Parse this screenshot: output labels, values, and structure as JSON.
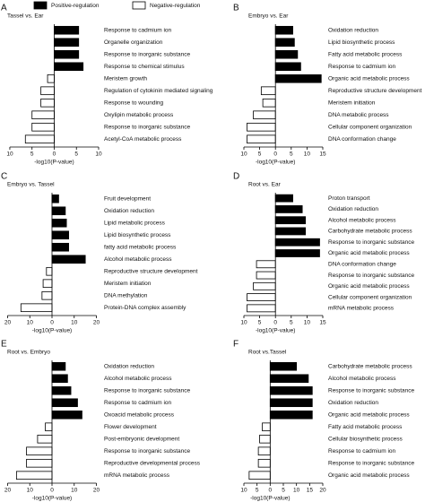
{
  "legend": [
    {
      "name": "Positive-regulation",
      "color": "#000000"
    },
    {
      "name": "Negative-regulation",
      "color": "#ffffff"
    }
  ],
  "chart_data": [
    {
      "type": "bar",
      "label": "A",
      "title": "Tassel vs. Ear",
      "x_label": "-log10(P-value)",
      "categories": [
        "Response to cadmium ion",
        "Organelle organization",
        "Response to inorganic substance",
        "Response to chemical stimulus",
        "Meristem growth",
        "Regulation of cytokinin mediated signaling",
        "Response to wounding",
        "Oxylipin metabolic process",
        "Response to inorganic substance",
        "Acetyl-CoA metabolic process"
      ],
      "values": [
        5.5,
        5.5,
        5.5,
        6.5,
        -1.5,
        -3,
        -3,
        -5,
        -5,
        -6.5
      ],
      "xlim": [
        -11,
        10
      ],
      "xticks": [
        {
          "value": -10,
          "label": "10"
        },
        {
          "value": -5,
          "label": "5"
        },
        0,
        5,
        10
      ]
    },
    {
      "type": "bar",
      "label": "B",
      "title": "Embryo vs. Ear",
      "x_label": "-log10(P-value)",
      "categories": [
        "Oxidation reduction",
        "Lipid biosynthetic process",
        "Fatty acid metabolic process",
        "Response to cadmium ion",
        "Organic acid metabolic process",
        "Reproductive structure development",
        "Meristem initiation",
        "DNA metabolic process",
        "Cellular component organization",
        "DNA conformation change"
      ],
      "values": [
        5.5,
        6,
        7,
        8,
        14.5,
        -4.5,
        -4,
        -7,
        -9,
        -9
      ],
      "xlim": [
        -10,
        15
      ],
      "xticks": [
        {
          "value": -10,
          "label": "10"
        },
        {
          "value": -5,
          "label": "5"
        },
        0,
        5,
        10,
        15
      ]
    },
    {
      "type": "bar",
      "label": "C",
      "title": "Embryo vs. Tassel",
      "x_label": "-log10(P-value)",
      "categories": [
        "Fruit development",
        "Oxidation reduction",
        "Lipid metabolic process",
        "Lipid biosynthetic process",
        "fatty acid metabolic process",
        "Alcohol metabolic process",
        "Reproductive structure development",
        "Meristem initiation",
        "DNA methylation",
        "Protein-DNA complex assembly"
      ],
      "values": [
        3,
        6,
        6.5,
        7.5,
        7.5,
        15,
        -2.5,
        -4,
        -4.5,
        -14
      ],
      "xlim": [
        -21,
        21
      ],
      "xticks": [
        {
          "value": -20,
          "label": "20"
        },
        {
          "value": -10,
          "label": "10"
        },
        0,
        10,
        20
      ]
    },
    {
      "type": "bar",
      "label": "D",
      "title": "Root vs. Ear",
      "x_label": "-log10(P-value)",
      "categories": [
        "Proton transport",
        "Oxidation reduction",
        "Alcohol metabolic process",
        "Carbohydrate metabolic process",
        "Response to inorganic substance",
        "Organic acid metabolic process",
        "DNA conformation change",
        "Response to inorganic substance",
        "Organic acid metabolic process",
        "Cellular component organization",
        "mRNA metabolic process"
      ],
      "values": [
        5.5,
        8.5,
        9.5,
        9.5,
        14,
        14,
        -6,
        -6,
        -7,
        -9,
        -9
      ],
      "xlim": [
        -10,
        15
      ],
      "xticks": [
        {
          "value": -10,
          "label": "10"
        },
        {
          "value": -5,
          "label": "5"
        },
        0,
        5,
        10,
        15
      ]
    },
    {
      "type": "bar",
      "label": "E",
      "title": "Root vs. Embryo",
      "x_label": "-log10(P-value)",
      "categories": [
        "Oxidation reduction",
        "Alcohol metabolic process",
        "Response to inorganic substance",
        "Response to cadmium ion",
        "Oxoacid metabolic process",
        "Flower development",
        "Post-embryonic development",
        "Response to inorganic substance",
        "Reproductive developmental process",
        "mRNA metabolic process"
      ],
      "values": [
        6,
        7,
        8.5,
        11.5,
        13.5,
        -3,
        -6.5,
        -11.5,
        -11.5,
        -16
      ],
      "xlim": [
        -21,
        21
      ],
      "xticks": [
        {
          "value": -20,
          "label": "20"
        },
        {
          "value": -10,
          "label": "10"
        },
        0,
        10,
        20
      ]
    },
    {
      "type": "bar",
      "label": "F",
      "title": "Root vs.Tassel",
      "x_label": "-log10(P-value)",
      "categories": [
        "Carbohydrate metabolic process",
        "Alcohol metabolic process",
        "Response to inorganic substance",
        "Oxidation reduction",
        "Organic acid metabolic process",
        "Fatty acid metabolic process",
        "Cellular biosynthetic process",
        "Response to cadmium ion",
        "Response to inorganic substance",
        "Organic acid metabolic process"
      ],
      "values": [
        10,
        14.5,
        16,
        16,
        16,
        -3,
        -4,
        -4.5,
        -4.5,
        -8
      ],
      "xlim": [
        -10,
        20
      ],
      "xticks": [
        {
          "value": -10,
          "label": "10"
        },
        {
          "value": -5,
          "label": "5"
        },
        0,
        5,
        10,
        15,
        20
      ]
    }
  ]
}
